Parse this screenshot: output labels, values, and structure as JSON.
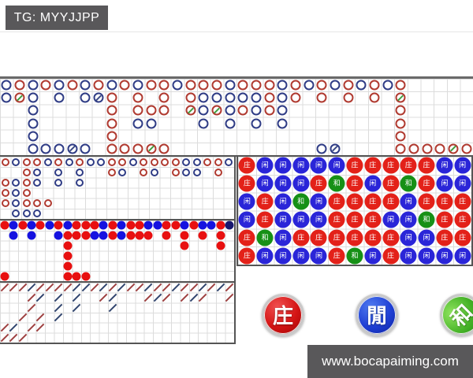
{
  "badge": {
    "label": "TG: MYYJJPP"
  },
  "footer": {
    "url": "www.bocapaiming.com"
  },
  "bet_buttons": [
    {
      "id": "banker",
      "label": "庄"
    },
    {
      "id": "player",
      "label": "閒"
    },
    {
      "id": "tie",
      "label": "和"
    }
  ],
  "colors": {
    "bar_bg": "#59585a",
    "border_dark": "#555555",
    "grid_line": "#dcdcdc",
    "road_red": "#b03a30",
    "road_blue": "#2f3c85",
    "tie_slash_green": "#3f9e3f",
    "tie_slash_navy": "#3a4a85",
    "dot_red": "#e81010",
    "dot_blue": "#1512e0",
    "dot_navy": "#181870",
    "slash_red": "#9e4040",
    "slash_blue": "#31456e",
    "bead_red": "#e32119",
    "bead_blue": "#2a25d8",
    "bead_green": "#169016"
  },
  "roads": {
    "legend": "R=red banker ring, B=blue player ring, r/b=ring with tie slash, dots: r/b/n filled, G=green tie, .=empty",
    "big_road": {
      "rows": [
        "BRBRBRBRBRBRRBRRRBRRRBRBRBRBRBR.....",
        "BrB.B.BbR.R.R.RBBBBBRBR.R.R.R.r.....",
        "..B.....R.RRR.rBrBRBRB........R.....",
        "..B.....R.BB...B.B.B.B........R.....",
        "..B.....R.....................R.....",
        "..BBBbB.RRRrR...........Bb....RRRRrR"
      ]
    },
    "big_eye": {
      "rows": [
        "RBRRBRBRBBRRBRRRRBBRRB",
        "..RB.B.B..RB.RB.RBB.R.",
        "RBRB.B.B..............",
        "RBR...................",
        "RBRRR.................",
        ".BBB.................."
      ]
    },
    "small_road": {
      "rows": [
        "rbrbrbrbrrrbrbrrbbrrbrbbrn",
        ".b.b..brrrbbrbrrr.r.r.r.r.",
        ".......r............r...r.",
        ".......r..................",
        ".......r..................",
        "r......rrr................"
      ]
    },
    "cockroach": {
      "rows": [
        "rrrbrrrrbbrbrbrrbrrbrrbrbr",
        "...rb.b.b..rb...rbr.rbr..r",
        "...r..b.b...b.............",
        "..r.r.b...................",
        "rb.rr.....................",
        "rrr......................."
      ]
    },
    "bead_plate": {
      "labels": {
        "R": "庄",
        "B": "闲",
        "G": "和"
      },
      "rows": [
        "RBBBBBRRRRRBB",
        "RBBBRGRBRGRBB",
        "BRBGBRRRRBRRR",
        "BRBBBRRRBBGRR",
        "RGBRRRRRRBBRR",
        "RBBBBRGBRBBBB"
      ]
    }
  }
}
